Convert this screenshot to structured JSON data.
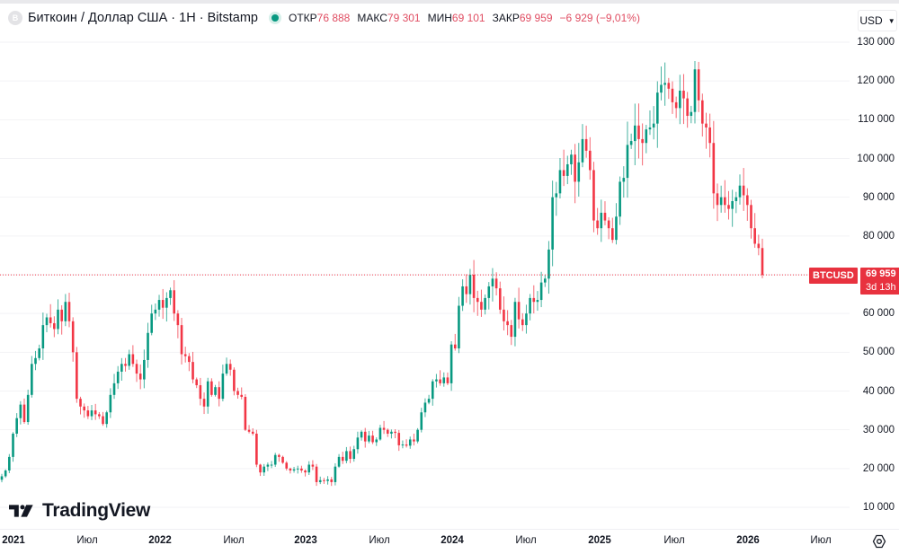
{
  "header": {
    "symbol_icon": "B",
    "title": "Биткоин / Доллар США · 1Н · Bitstamp",
    "market_status": "open",
    "ohlc": [
      {
        "label": "ОТКР",
        "value": "76 888"
      },
      {
        "label": "МАКС",
        "value": "79 301"
      },
      {
        "label": "МИН",
        "value": "69 101"
      },
      {
        "label": "ЗАКР",
        "value": "69 959"
      }
    ],
    "change": "−6 929 (−9,01%)",
    "currency": "USD",
    "currency_chevron": "chevron-down-icon"
  },
  "price_tag": {
    "symbol": "BTCUSD",
    "price": "69 959",
    "countdown": "3d 13h"
  },
  "colors": {
    "up": "#089981",
    "down": "#f23645",
    "price_line": "#f23645",
    "grid": "#f2f2f5"
  },
  "branding": {
    "logo_text": "TradingView"
  },
  "chart_data": {
    "type": "candlestick",
    "title": "Биткоин / Доллар США · 1Н · Bitstamp",
    "interval": "1 week",
    "xlabel": "",
    "ylabel": "USD",
    "ylim": [
      10000,
      130000
    ],
    "y_ticks": [
      130000,
      120000,
      110000,
      100000,
      90000,
      80000,
      60000,
      50000,
      40000,
      30000,
      20000,
      10000
    ],
    "y_tick_labels": [
      "130 000",
      "120 000",
      "110 000",
      "100 000",
      "90 000",
      "80 000",
      "60 000",
      "50 000",
      "40 000",
      "30 000",
      "20 000",
      "10 000"
    ],
    "x_ticks": [
      {
        "label": "2021",
        "year": true
      },
      {
        "label": "Июл",
        "year": false
      },
      {
        "label": "2022",
        "year": true
      },
      {
        "label": "Июл",
        "year": false
      },
      {
        "label": "2023",
        "year": true
      },
      {
        "label": "Июл",
        "year": false
      },
      {
        "label": "2024",
        "year": true
      },
      {
        "label": "Июл",
        "year": false
      },
      {
        "label": "2025",
        "year": true
      },
      {
        "label": "Июл",
        "year": false
      },
      {
        "label": "2026",
        "year": true
      },
      {
        "label": "Июл",
        "year": false
      }
    ],
    "last_price": 69959,
    "last_candle": {
      "open": 76888,
      "high": 79301,
      "low": 69101,
      "close": 69959
    },
    "closes": [
      18000,
      19500,
      23000,
      29000,
      33000,
      36500,
      32000,
      39000,
      47000,
      48500,
      51000,
      57000,
      59000,
      57500,
      56000,
      61000,
      58000,
      63000,
      58000,
      50000,
      38000,
      36000,
      35000,
      33500,
      35000,
      34000,
      33500,
      31500,
      34500,
      39000,
      42000,
      45000,
      47000,
      46500,
      49500,
      47000,
      44500,
      43000,
      48000,
      55000,
      60000,
      61000,
      63500,
      61500,
      64000,
      66000,
      60000,
      57000,
      49500,
      49000,
      47500,
      43000,
      41500,
      38000,
      36000,
      42500,
      39000,
      41000,
      38000,
      44500,
      47000,
      45500,
      40000,
      39000,
      38500,
      30000,
      29500,
      29000,
      21000,
      19000,
      20500,
      21000,
      21000,
      23500,
      23000,
      21500,
      20000,
      19500,
      19800,
      20000,
      19500,
      19000,
      21000,
      20500,
      16500,
      17000,
      16800,
      17200,
      16500,
      20500,
      23000,
      22000,
      24500,
      22500,
      25000,
      28000,
      29500,
      27000,
      28500,
      26800,
      27500,
      30500,
      30000,
      29000,
      29500,
      29200,
      26000,
      26200,
      25900,
      27500,
      27000,
      30000,
      34500,
      37000,
      38000,
      42500,
      43000,
      42000,
      43500,
      42000,
      52000,
      51000,
      62000,
      67000,
      65000,
      70000,
      64000,
      63000,
      61000,
      64000,
      67000,
      69000,
      66500,
      61000,
      58000,
      57000,
      54000,
      63000,
      58500,
      57000,
      60000,
      64000,
      63000,
      63500,
      68000,
      69000,
      76500,
      90000,
      91000,
      97000,
      95500,
      98500,
      101000,
      94000,
      99000,
      105000,
      102000,
      97000,
      84000,
      82000,
      86000,
      84000,
      82000,
      79000,
      85000,
      94000,
      95000,
      103500,
      104500,
      108500,
      105000,
      104000,
      107500,
      108000,
      109000,
      117000,
      119000,
      119500,
      118000,
      114500,
      113000,
      117500,
      115500,
      111000,
      112000,
      123000,
      115000,
      109000,
      108000,
      104000,
      91000,
      88000,
      90000,
      88000,
      87000,
      89000,
      90000,
      93000,
      90500,
      88000,
      82000,
      78000,
      76888,
      69959
    ]
  }
}
